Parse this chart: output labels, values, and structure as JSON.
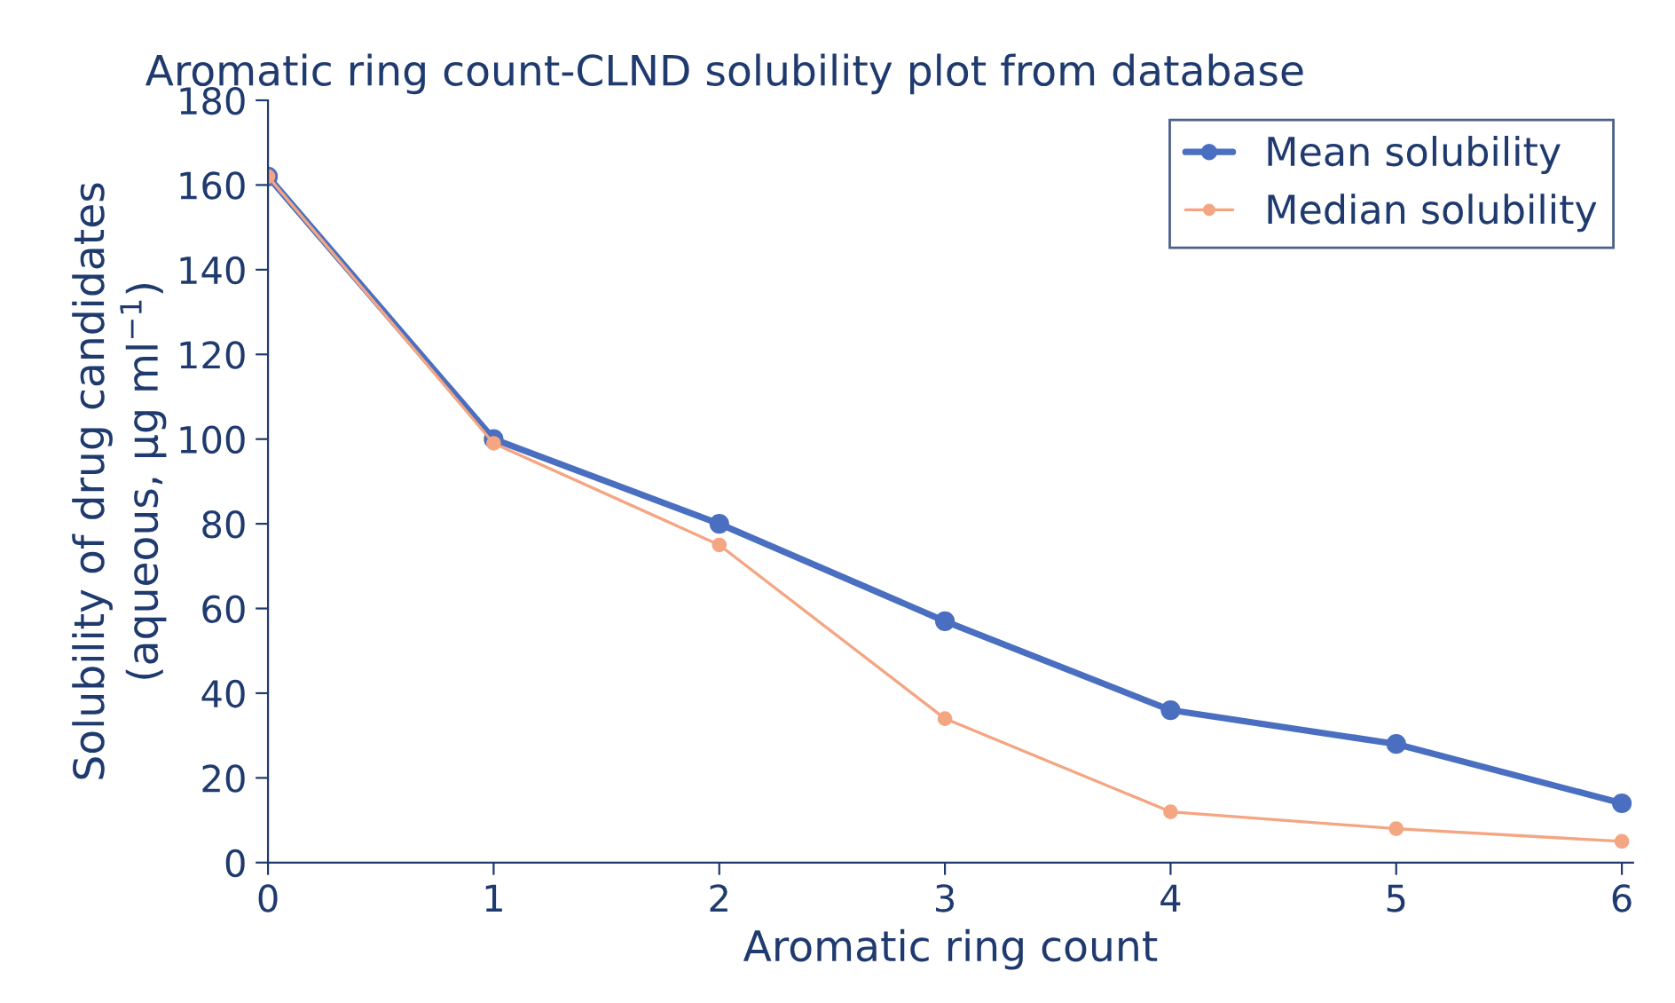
{
  "chart_data": {
    "type": "line",
    "title": "Aromatic ring count-CLND solubility plot from database",
    "xlabel": "Aromatic ring count",
    "ylabel": "Solubility of drug candidates\n(aqueous, μg ml$^{−1}$)",
    "x": [
      0,
      1,
      2,
      3,
      4,
      5,
      6
    ],
    "series": [
      {
        "name": "Mean solubility",
        "color": "#4a6fc0",
        "values": [
          162,
          100,
          80,
          57,
          36,
          28,
          14
        ]
      },
      {
        "name": "Median solubility",
        "color": "#f4a582",
        "values": [
          162,
          99,
          75,
          34,
          12,
          8,
          5
        ]
      }
    ],
    "xlim": [
      0,
      6.05
    ],
    "xticks": [
      0,
      1,
      2,
      3,
      4,
      5,
      6
    ],
    "ylim": [
      0,
      180
    ],
    "yticks": [
      0,
      20,
      40,
      60,
      80,
      100,
      120,
      140,
      160,
      180
    ],
    "grid": false,
    "legend": "top right",
    "marker": "circle",
    "line_style": "solid"
  }
}
